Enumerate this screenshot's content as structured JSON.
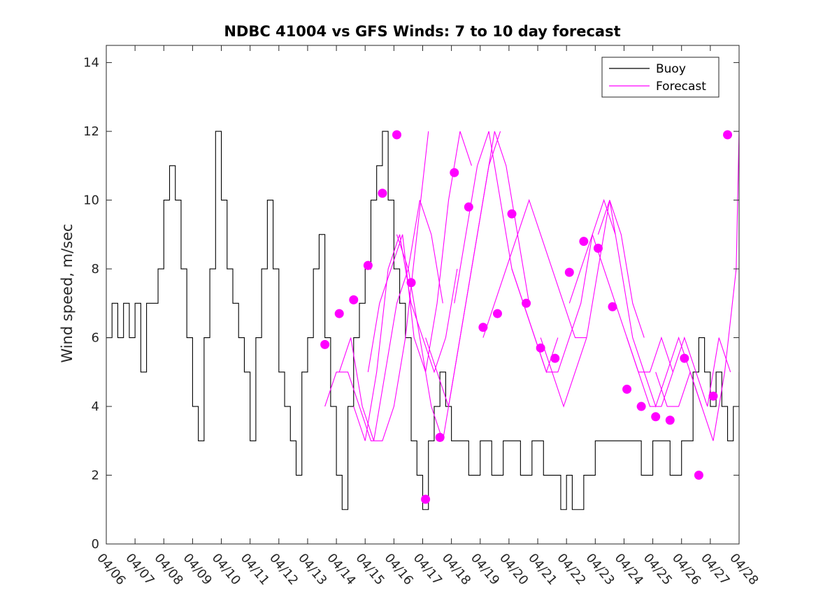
{
  "chart_data": {
    "type": "line",
    "title": "NDBC 41004 vs GFS Winds: 7 to 10 day forecast",
    "xlabel": "",
    "ylabel": "Wind speed, m/sec",
    "xlim": [
      "04/06",
      "04/28"
    ],
    "ylim": [
      0,
      14.5
    ],
    "yticks": [
      0,
      2,
      4,
      6,
      8,
      10,
      12,
      14
    ],
    "xticks": [
      "04/06",
      "04/07",
      "04/08",
      "04/09",
      "04/10",
      "04/11",
      "04/12",
      "04/13",
      "04/14",
      "04/15",
      "04/16",
      "04/17",
      "04/18",
      "04/19",
      "04/20",
      "04/21",
      "04/22",
      "04/23",
      "04/24",
      "04/25",
      "04/26",
      "04/27",
      "04/28"
    ],
    "grid": false,
    "legend": {
      "placement": "top-right",
      "entries": [
        {
          "label": "Buoy",
          "color": "#000000"
        },
        {
          "label": "Forecast",
          "color": "#ff00ff"
        }
      ]
    },
    "series": [
      {
        "name": "Buoy",
        "color": "#000000",
        "x_unit": "days since 04/06",
        "x": [
          0,
          0.2,
          0.4,
          0.6,
          0.8,
          1.0,
          1.2,
          1.4,
          1.6,
          1.8,
          2.0,
          2.2,
          2.4,
          2.6,
          2.8,
          3.0,
          3.2,
          3.4,
          3.6,
          3.8,
          4.0,
          4.2,
          4.4,
          4.6,
          4.8,
          5.0,
          5.2,
          5.4,
          5.6,
          5.8,
          6.0,
          6.2,
          6.4,
          6.6,
          6.8,
          7.0,
          7.2,
          7.4,
          7.6,
          7.8,
          8.0,
          8.2,
          8.4,
          8.6,
          8.8,
          9.0,
          9.2,
          9.4,
          9.6,
          9.8,
          10.0,
          10.2,
          10.4,
          10.6,
          10.8,
          11.0,
          11.2,
          11.4,
          11.6,
          11.8,
          12.0,
          12.2,
          12.4,
          12.6,
          12.8,
          13.0,
          13.2,
          13.4,
          13.6,
          13.8,
          14.0,
          14.2,
          14.4,
          14.6,
          14.8,
          15.0,
          15.2,
          15.4,
          15.6,
          15.8,
          16.0,
          16.2,
          16.4,
          16.6,
          16.8,
          17.0,
          17.2,
          17.4,
          17.6,
          17.8,
          18.0,
          18.2,
          18.4,
          18.6,
          18.8,
          19.0,
          19.2,
          19.4,
          19.6,
          19.8,
          20.0,
          20.2,
          20.4,
          20.6,
          20.8,
          21.0,
          21.2,
          21.4,
          21.6,
          21.8,
          22.0
        ],
        "values": [
          6,
          7,
          6,
          7,
          6,
          7,
          5,
          7,
          7,
          8,
          10,
          11,
          10,
          8,
          6,
          4,
          3,
          6,
          8,
          12,
          10,
          8,
          7,
          6,
          5,
          3,
          6,
          8,
          10,
          8,
          5,
          4,
          3,
          2,
          5,
          6,
          8,
          9,
          6,
          4,
          2,
          1,
          4,
          6,
          7,
          8,
          10,
          11,
          12,
          10,
          8,
          7,
          6,
          3,
          2,
          1,
          3,
          4,
          5,
          4,
          3,
          3,
          3,
          2,
          2,
          3,
          3,
          2,
          2,
          3,
          3,
          3,
          2,
          2,
          3,
          3,
          2,
          2,
          2,
          1,
          2,
          1,
          1,
          2,
          2,
          3,
          3,
          3,
          3,
          3,
          3,
          3,
          3,
          2,
          2,
          3,
          3,
          3,
          2,
          2,
          3,
          3,
          5,
          6,
          5,
          4,
          5,
          4,
          3,
          4,
          5
        ]
      },
      {
        "name": "Forecast",
        "color": "#ff00ff",
        "x_unit": "days since 04/06",
        "runs": [
          {
            "x": [
              7.6,
              8.0,
              8.4,
              8.8,
              9.2,
              9.6,
              10.0,
              10.4,
              10.8,
              11.2
            ],
            "values": [
              4,
              5,
              5,
              4,
              3,
              3,
              4,
              6,
              9,
              12
            ]
          },
          {
            "x": [
              8.1,
              8.5,
              8.9,
              9.3,
              9.7,
              10.1,
              10.5,
              10.9,
              11.3,
              11.7
            ],
            "values": [
              5,
              6,
              4,
              3,
              5,
              7,
              8,
              10,
              9,
              7
            ]
          },
          {
            "x": [
              8.6,
              9.0,
              9.4,
              9.8,
              10.2,
              10.6,
              11.0,
              11.4,
              11.8,
              12.2
            ],
            "values": [
              4,
              3,
              5,
              8,
              9,
              7,
              6,
              5,
              6,
              8
            ]
          },
          {
            "x": [
              9.1,
              9.5,
              9.9,
              10.3,
              10.7,
              11.1,
              11.5,
              11.9,
              12.3,
              12.7
            ],
            "values": [
              5,
              7,
              8,
              9,
              6,
              5,
              7,
              10,
              12,
              11
            ]
          },
          {
            "x": [
              10.1,
              10.5,
              10.9,
              11.3,
              11.7,
              12.1,
              12.5,
              12.9,
              13.3,
              13.7
            ],
            "values": [
              9,
              8,
              6,
              4,
              3,
              5,
              7,
              9,
              11,
              12
            ]
          },
          {
            "x": [
              11.1,
              11.5,
              11.9,
              12.3,
              12.7,
              13.1,
              13.5,
              13.9,
              14.3,
              14.7
            ],
            "values": [
              6,
              5,
              4,
              6,
              8,
              10,
              12,
              11,
              9,
              7
            ]
          },
          {
            "x": [
              12.1,
              12.5,
              12.9,
              13.3,
              13.7,
              14.1,
              14.5,
              14.9,
              15.3,
              15.7
            ],
            "values": [
              7,
              9,
              11,
              12,
              10,
              8,
              7,
              6,
              5,
              6
            ]
          },
          {
            "x": [
              13.1,
              13.5,
              13.9,
              14.3,
              14.7,
              15.1,
              15.5,
              15.9,
              16.3,
              16.7
            ],
            "values": [
              6,
              7,
              8,
              9,
              10,
              9,
              8,
              7,
              6,
              6
            ]
          },
          {
            "x": [
              14.1,
              14.5,
              14.9,
              15.3,
              15.7,
              16.1,
              16.5,
              16.9,
              17.3,
              17.7
            ],
            "values": [
              8,
              7,
              6,
              5,
              5,
              6,
              7,
              9,
              10,
              9
            ]
          },
          {
            "x": [
              15.1,
              15.5,
              15.9,
              16.3,
              16.7,
              17.1,
              17.5,
              17.9,
              18.3,
              18.7
            ],
            "values": [
              6,
              5,
              4,
              5,
              6,
              8,
              10,
              9,
              7,
              6
            ]
          },
          {
            "x": [
              16.1,
              16.5,
              16.9,
              17.3,
              17.7,
              18.1,
              18.5,
              18.9,
              19.3,
              19.7
            ],
            "values": [
              7,
              8,
              9,
              8,
              7,
              6,
              5,
              5,
              6,
              5
            ]
          },
          {
            "x": [
              17.1,
              17.5,
              17.9,
              18.3,
              18.7,
              19.1,
              19.5,
              19.9,
              20.3,
              20.7
            ],
            "values": [
              9,
              10,
              8,
              6,
              5,
              4,
              5,
              6,
              5,
              4
            ]
          },
          {
            "x": [
              18.1,
              18.5,
              18.9,
              19.3,
              19.7,
              20.1,
              20.5,
              20.9,
              21.3,
              21.7
            ],
            "values": [
              6,
              5,
              4,
              4,
              5,
              6,
              5,
              4,
              6,
              5
            ]
          },
          {
            "x": [
              19.1,
              19.5,
              19.9,
              20.3,
              20.7,
              21.1,
              21.5,
              21.9,
              22.0
            ],
            "values": [
              5,
              4,
              4,
              5,
              4,
              3,
              5,
              8,
              12
            ]
          }
        ]
      }
    ],
    "markers": {
      "name": "Forecast points",
      "color": "#ff00ff",
      "x_unit": "days since 04/06",
      "x": [
        7.6,
        8.1,
        8.6,
        9.1,
        9.6,
        10.1,
        10.6,
        11.1,
        11.6,
        12.1,
        12.6,
        13.1,
        13.6,
        14.1,
        14.6,
        15.1,
        15.6,
        16.1,
        16.6,
        17.1,
        17.6,
        18.1,
        18.6,
        19.1,
        19.6,
        20.1,
        20.6,
        21.1,
        21.6
      ],
      "values": [
        5.8,
        6.7,
        7.1,
        8.1,
        10.2,
        11.9,
        7.6,
        1.3,
        3.1,
        10.8,
        9.8,
        6.3,
        6.7,
        9.6,
        7.0,
        5.7,
        5.4,
        7.9,
        8.8,
        8.6,
        6.9,
        4.5,
        4.0,
        3.7,
        3.6,
        5.4,
        2.0,
        4.3,
        11.9
      ]
    }
  }
}
